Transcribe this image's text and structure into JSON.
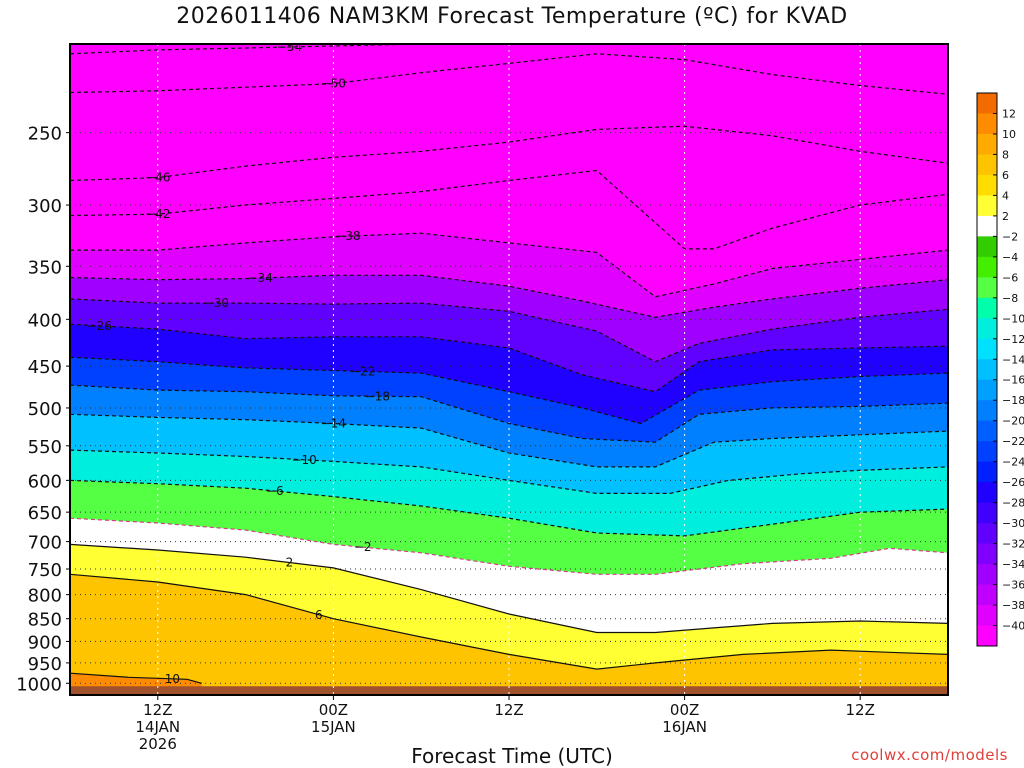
{
  "title": "2026011406 NAM3KM Forecast Temperature (ºC) for KVAD",
  "xlabel": "Forecast Time (UTC)",
  "credit": "coolwx.com/models",
  "chart_data": {
    "type": "contour",
    "title": "2026011406 NAM3KM Forecast Temperature (ºC) for KVAD",
    "xlabel": "Forecast Time (UTC)",
    "ylabel": "",
    "xlim": [
      0,
      60
    ],
    "ylim": [
      1030,
      200
    ],
    "y_scale": "log-pressure",
    "y_ticks": [
      250,
      300,
      350,
      400,
      450,
      500,
      550,
      600,
      650,
      700,
      750,
      800,
      850,
      900,
      950,
      1000
    ],
    "x_ticks": [
      {
        "x": 6,
        "lines": [
          "12Z",
          "14JAN",
          "2026"
        ]
      },
      {
        "x": 18,
        "lines": [
          "00Z",
          "15JAN"
        ]
      },
      {
        "x": 30,
        "lines": [
          "12Z"
        ]
      },
      {
        "x": 42,
        "lines": [
          "00Z",
          "16JAN"
        ]
      },
      {
        "x": 54,
        "lines": [
          "12Z"
        ]
      }
    ],
    "colorbar": {
      "labels": [
        12,
        10,
        8,
        6,
        4,
        2,
        -2,
        -4,
        -6,
        -8,
        -10,
        -12,
        -14,
        -16,
        -18,
        -20,
        -22,
        -24,
        -26,
        -28,
        -30,
        -32,
        -34,
        -36,
        -38,
        -40
      ],
      "colors": [
        "#f26b00",
        "#ff8c00",
        "#ffaa00",
        "#ffc400",
        "#ffdd00",
        "#ffff33",
        "#ffffff",
        "#33cc00",
        "#44ee00",
        "#55ff44",
        "#00ffaa",
        "#00eedd",
        "#00e0ff",
        "#00c0ff",
        "#00a0ff",
        "#0080ff",
        "#0060ff",
        "#0040ff",
        "#0020ff",
        "#2000ff",
        "#4000ff",
        "#6000ff",
        "#8000ff",
        "#a000ff",
        "#c000ff",
        "#e000ff",
        "#ff00ff"
      ]
    },
    "contours": [
      {
        "level": -54,
        "points": [
          [
            0,
            205
          ],
          [
            6,
            203
          ],
          [
            12,
            202
          ],
          [
            18,
            201
          ],
          [
            24,
            200
          ],
          [
            30,
            200
          ],
          [
            36,
            200
          ],
          [
            42,
            200
          ],
          [
            48,
            200
          ],
          [
            54,
            200
          ],
          [
            60,
            200
          ]
        ],
        "label_at": 15
      },
      {
        "level": -50,
        "points": [
          [
            0,
            226
          ],
          [
            6,
            225
          ],
          [
            12,
            223
          ],
          [
            18,
            221
          ],
          [
            24,
            215
          ],
          [
            30,
            210
          ],
          [
            36,
            205
          ],
          [
            42,
            208
          ],
          [
            48,
            216
          ],
          [
            54,
            222
          ],
          [
            60,
            227
          ]
        ],
        "label_at": 18
      },
      {
        "level": -46,
        "points": [
          [
            0,
            282
          ],
          [
            6,
            280
          ],
          [
            12,
            272
          ],
          [
            18,
            266
          ],
          [
            24,
            262
          ],
          [
            30,
            256
          ],
          [
            36,
            248
          ],
          [
            42,
            246
          ],
          [
            48,
            252
          ],
          [
            54,
            262
          ],
          [
            60,
            270
          ]
        ],
        "label_at": 6
      },
      {
        "level": -42,
        "points": [
          [
            0,
            308
          ],
          [
            6,
            307
          ],
          [
            12,
            300
          ],
          [
            18,
            295
          ],
          [
            24,
            290
          ],
          [
            30,
            282
          ],
          [
            36,
            275
          ],
          [
            42,
            335
          ],
          [
            44,
            335
          ],
          [
            48,
            318
          ],
          [
            54,
            300
          ],
          [
            60,
            292
          ]
        ],
        "label_at": 6
      },
      {
        "level": -38,
        "points": [
          [
            0,
            336
          ],
          [
            6,
            336
          ],
          [
            12,
            330
          ],
          [
            18,
            325
          ],
          [
            24,
            322
          ],
          [
            30,
            330
          ],
          [
            36,
            338
          ],
          [
            40,
            378
          ],
          [
            44,
            366
          ],
          [
            48,
            352
          ],
          [
            54,
            344
          ],
          [
            60,
            336
          ]
        ],
        "label_at": 19
      },
      {
        "level": -34,
        "points": [
          [
            0,
            360
          ],
          [
            6,
            362
          ],
          [
            12,
            361
          ],
          [
            18,
            358
          ],
          [
            24,
            358
          ],
          [
            30,
            368
          ],
          [
            35,
            382
          ],
          [
            40,
            398
          ],
          [
            44,
            388
          ],
          [
            48,
            380
          ],
          [
            54,
            370
          ],
          [
            60,
            362
          ]
        ],
        "label_at": 13
      },
      {
        "level": -30,
        "points": [
          [
            0,
            380
          ],
          [
            6,
            384
          ],
          [
            12,
            384
          ],
          [
            18,
            385
          ],
          [
            24,
            384
          ],
          [
            30,
            392
          ],
          [
            36,
            412
          ],
          [
            40,
            445
          ],
          [
            43,
            425
          ],
          [
            48,
            410
          ],
          [
            54,
            398
          ],
          [
            60,
            390
          ]
        ],
        "label_at": 10
      },
      {
        "level": -26,
        "points": [
          [
            0,
            405
          ],
          [
            6,
            410
          ],
          [
            12,
            420
          ],
          [
            18,
            418
          ],
          [
            24,
            418
          ],
          [
            30,
            430
          ],
          [
            35,
            460
          ],
          [
            40,
            480
          ],
          [
            43,
            445
          ],
          [
            48,
            432
          ],
          [
            54,
            430
          ],
          [
            60,
            428
          ]
        ],
        "label_at": 2
      },
      {
        "level": -22,
        "points": [
          [
            0,
            440
          ],
          [
            6,
            445
          ],
          [
            12,
            452
          ],
          [
            18,
            455
          ],
          [
            24,
            458
          ],
          [
            30,
            480
          ],
          [
            35,
            500
          ],
          [
            39,
            520
          ],
          [
            43,
            478
          ],
          [
            48,
            468
          ],
          [
            54,
            462
          ],
          [
            60,
            458
          ]
        ],
        "label_at": 20
      },
      {
        "level": -18,
        "points": [
          [
            0,
            472
          ],
          [
            6,
            478
          ],
          [
            12,
            480
          ],
          [
            18,
            485
          ],
          [
            24,
            486
          ],
          [
            30,
            520
          ],
          [
            35,
            540
          ],
          [
            40,
            545
          ],
          [
            43,
            508
          ],
          [
            48,
            500
          ],
          [
            54,
            498
          ],
          [
            60,
            494
          ]
        ],
        "label_at": 21
      },
      {
        "level": -14,
        "points": [
          [
            0,
            508
          ],
          [
            6,
            512
          ],
          [
            12,
            515
          ],
          [
            18,
            520
          ],
          [
            24,
            526
          ],
          [
            30,
            560
          ],
          [
            36,
            580
          ],
          [
            40,
            580
          ],
          [
            44,
            545
          ],
          [
            48,
            540
          ],
          [
            54,
            535
          ],
          [
            60,
            530
          ]
        ],
        "label_at": 18
      },
      {
        "level": -10,
        "points": [
          [
            0,
            556
          ],
          [
            6,
            560
          ],
          [
            12,
            565
          ],
          [
            18,
            572
          ],
          [
            24,
            580
          ],
          [
            30,
            600
          ],
          [
            36,
            620
          ],
          [
            41,
            620
          ],
          [
            45,
            600
          ],
          [
            50,
            590
          ],
          [
            54,
            585
          ],
          [
            60,
            580
          ]
        ],
        "label_at": 16
      },
      {
        "level": -6,
        "points": [
          [
            0,
            600
          ],
          [
            6,
            605
          ],
          [
            12,
            612
          ],
          [
            18,
            625
          ],
          [
            24,
            640
          ],
          [
            30,
            660
          ],
          [
            36,
            685
          ],
          [
            42,
            690
          ],
          [
            48,
            670
          ],
          [
            54,
            650
          ],
          [
            60,
            645
          ]
        ],
        "label_at": 14
      },
      {
        "level": -2,
        "points": [
          [
            0,
            660
          ],
          [
            6,
            668
          ],
          [
            12,
            680
          ],
          [
            18,
            705
          ],
          [
            24,
            720
          ],
          [
            30,
            745
          ],
          [
            36,
            760
          ],
          [
            40,
            760
          ],
          [
            46,
            740
          ],
          [
            52,
            730
          ],
          [
            56,
            712
          ],
          [
            60,
            720
          ]
        ],
        "label_at": 20
      },
      {
        "level": 2,
        "points": [
          [
            0,
            705
          ],
          [
            6,
            715
          ],
          [
            12,
            728
          ],
          [
            18,
            748
          ],
          [
            24,
            790
          ],
          [
            30,
            840
          ],
          [
            36,
            880
          ],
          [
            40,
            880
          ],
          [
            44,
            870
          ],
          [
            48,
            860
          ],
          [
            54,
            855
          ],
          [
            60,
            860
          ]
        ],
        "label_at": 15
      },
      {
        "level": 6,
        "points": [
          [
            0,
            760
          ],
          [
            6,
            775
          ],
          [
            12,
            800
          ],
          [
            18,
            850
          ],
          [
            24,
            890
          ],
          [
            30,
            930
          ],
          [
            36,
            965
          ],
          [
            40,
            950
          ],
          [
            46,
            930
          ],
          [
            52,
            920
          ],
          [
            56,
            925
          ],
          [
            60,
            930
          ]
        ],
        "label_at": 17
      },
      {
        "level": 10,
        "points": [
          [
            0,
            975
          ],
          [
            4,
            985
          ],
          [
            8,
            990
          ],
          [
            9,
            1000
          ]
        ],
        "label_at": 7
      }
    ]
  }
}
